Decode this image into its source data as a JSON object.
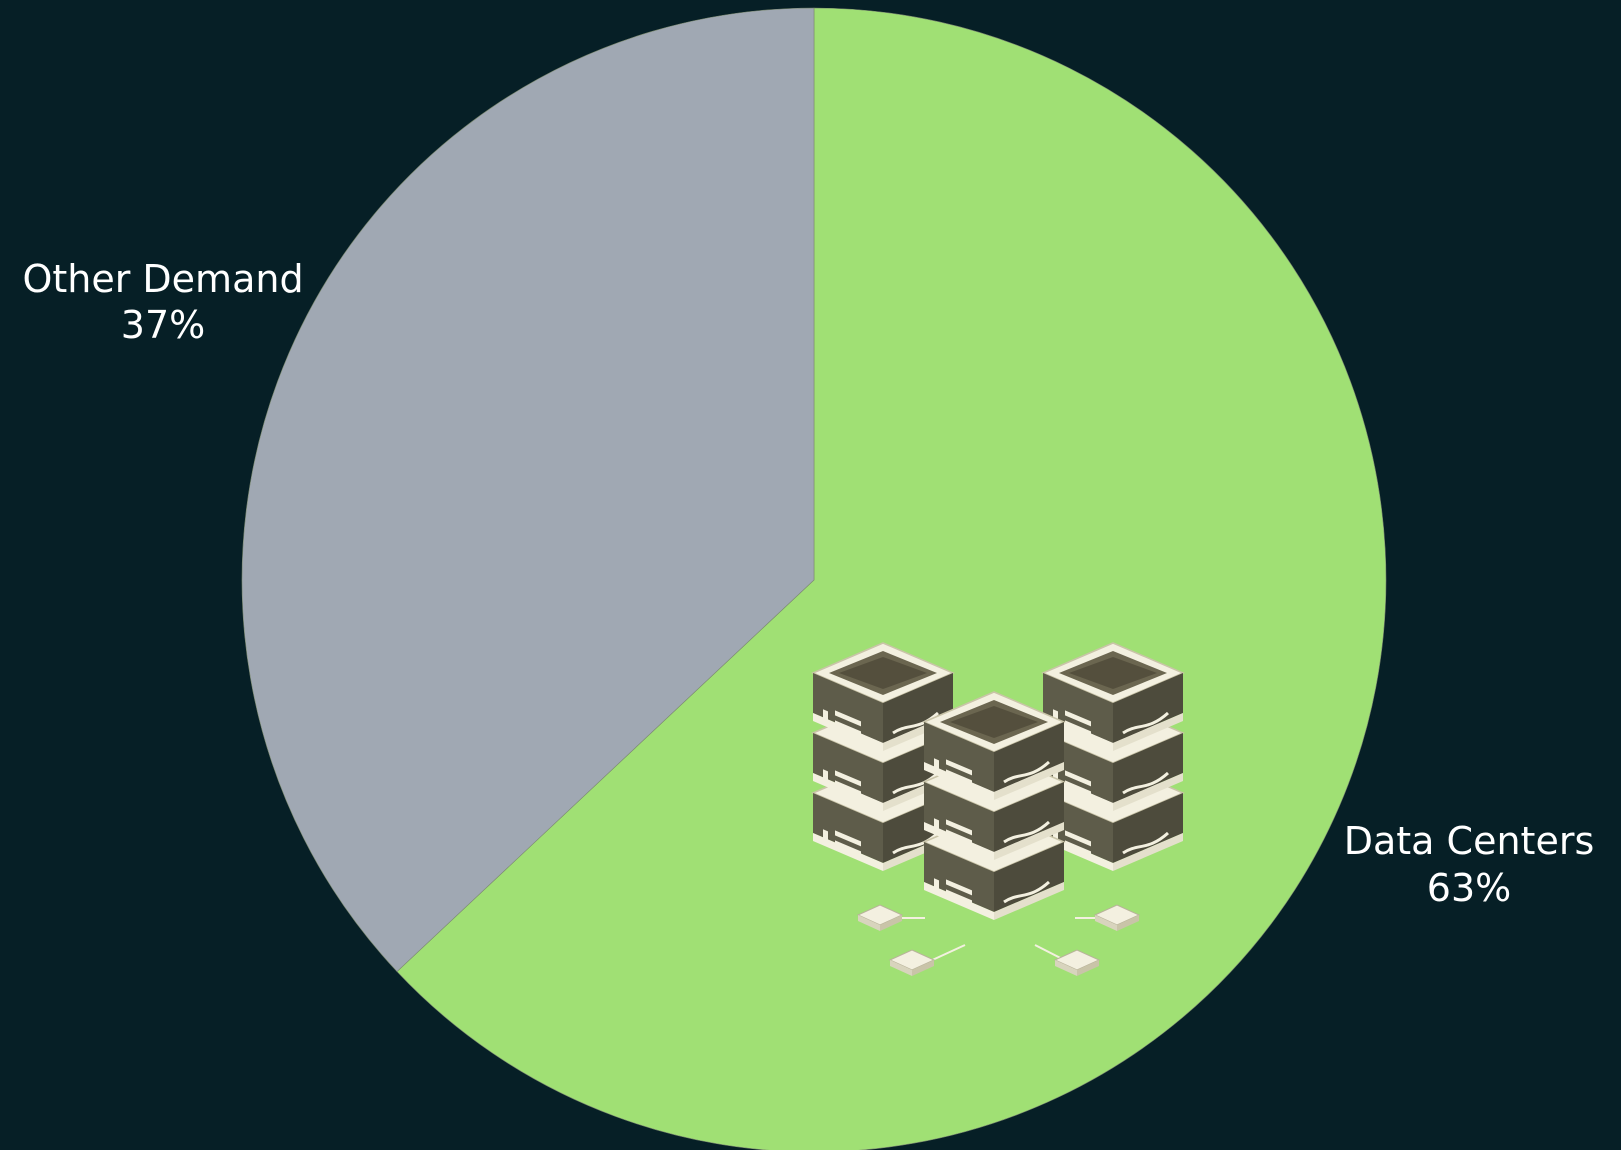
{
  "colors": {
    "background": "#061f26",
    "data_centers": "#a0e074",
    "other_demand": "#a0a8b3"
  },
  "icons": {
    "illustration": "server-racks-icon"
  },
  "chart_data": {
    "type": "pie",
    "title": "",
    "start_angle_deg": 90,
    "direction": "clockwise",
    "slices": [
      {
        "name": "Data Centers",
        "value": 63,
        "label": "63%",
        "color": "#a0e074"
      },
      {
        "name": "Other Demand",
        "value": 37,
        "label": "37%",
        "color": "#a0a8b3"
      }
    ],
    "legend": "none"
  }
}
